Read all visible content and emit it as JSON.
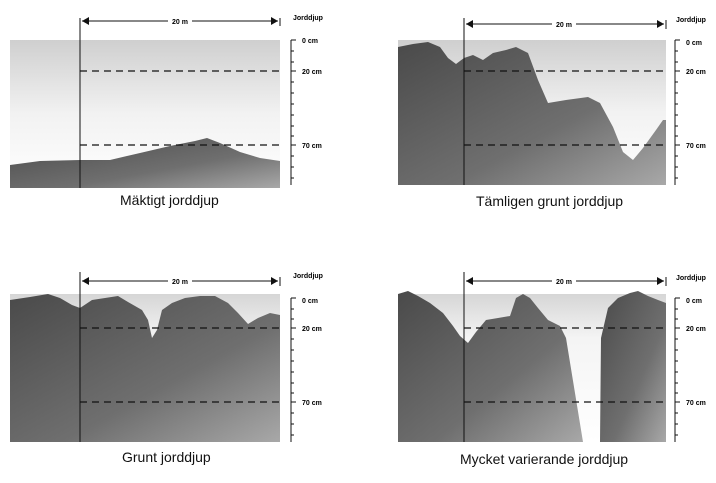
{
  "panels": [
    {
      "caption": "Mäktigt jorddjup",
      "span_label": "20 m",
      "scale_title": "Jorddjup",
      "depth_labels": [
        "0 cm",
        "20 cm",
        "70 cm"
      ]
    },
    {
      "caption": "Tämligen grunt jorddjup",
      "span_label": "20 m",
      "scale_title": "Jorddjup",
      "depth_labels": [
        "0 cm",
        "20 cm",
        "70 cm"
      ]
    },
    {
      "caption": "Grunt jorddjup",
      "span_label": "20 m",
      "scale_title": "Jorddjup",
      "depth_labels": [
        "0 cm",
        "20 cm",
        "70 cm"
      ]
    },
    {
      "caption": "Mycket varierande jorddjup",
      "span_label": "20 m",
      "scale_title": "Jorddjup",
      "depth_labels": [
        "0 cm",
        "20 cm",
        "70 cm"
      ]
    }
  ],
  "colors": {
    "bedrock_dark": "#4a4a4a",
    "bedrock_light": "#a8a8a8",
    "soil_top": "#d0d0d0",
    "soil_bottom": "#ffffff",
    "line": "#111111"
  }
}
